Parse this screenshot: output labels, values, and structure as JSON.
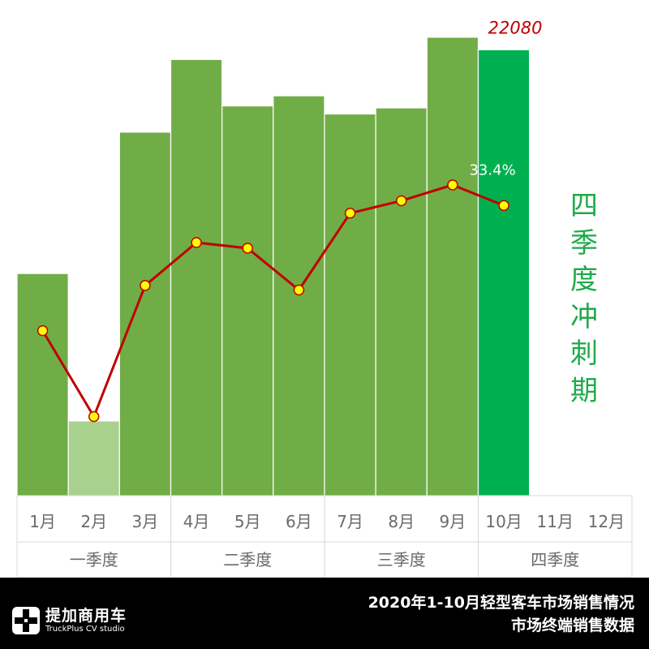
{
  "chart_data": {
    "type": "bar+line",
    "categories": [
      "1月",
      "2月",
      "3月",
      "4月",
      "5月",
      "6月",
      "7月",
      "8月",
      "9月",
      "10月",
      "11月",
      "12月"
    ],
    "quarters": [
      {
        "label": "一季度",
        "months": 3
      },
      {
        "label": "二季度",
        "months": 3
      },
      {
        "label": "三季度",
        "months": 3
      },
      {
        "label": "四季度",
        "months": 3
      }
    ],
    "bars": {
      "values": [
        11000,
        3700,
        18000,
        21600,
        19300,
        19800,
        18900,
        19200,
        22700,
        22080,
        null,
        null
      ],
      "colors": [
        "#70ad47",
        "#a9d18e",
        "#70ad47",
        "#70ad47",
        "#70ad47",
        "#70ad47",
        "#70ad47",
        "#70ad47",
        "#70ad47",
        "#00b050",
        null,
        null
      ],
      "ylim": [
        0,
        23500
      ]
    },
    "line": {
      "values": [
        -0.22,
        -0.6,
        -0.02,
        0.17,
        0.145,
        -0.04,
        0.3,
        0.355,
        0.425,
        0.334,
        null,
        null
      ],
      "ylim": [
        -0.95,
        1.15
      ],
      "color": "#c00000",
      "marker_color": "#ffff00"
    },
    "annotations": [
      {
        "text": "22080",
        "index": 9,
        "target": "bar",
        "color": "#c00000"
      },
      {
        "text": "33.4%",
        "index": 9,
        "target": "line",
        "color": "#ffffff"
      }
    ]
  },
  "side_label": [
    "四",
    "季",
    "度",
    "冲",
    "刺",
    "期"
  ],
  "footer": {
    "logo_cn": "提加商用车",
    "logo_en": "TruckPlus CV studio",
    "title_line1": "2020年1-10月轻型客车市场销售情况",
    "title_line2": "市场终端销售数据"
  }
}
